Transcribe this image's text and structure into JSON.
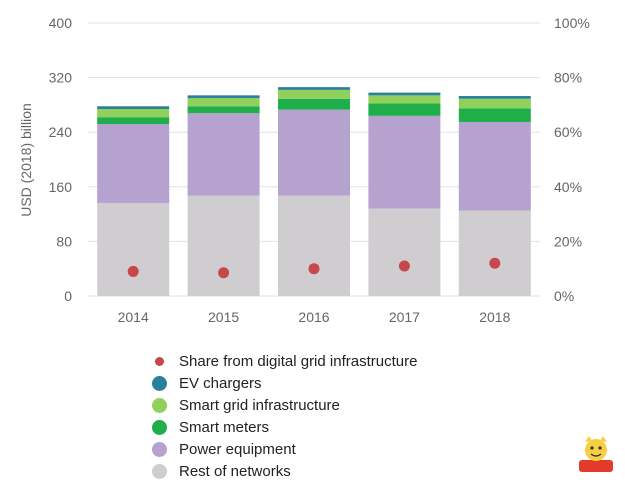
{
  "chart_data": {
    "type": "bar",
    "stacked": true,
    "categories": [
      "2014",
      "2015",
      "2016",
      "2017",
      "2018"
    ],
    "series": [
      {
        "name": "Rest of networks",
        "color": "#cfcdd0",
        "values": [
          136,
          147,
          147,
          128,
          125
        ]
      },
      {
        "name": "Power equipment",
        "color": "#b6a2cf",
        "values": [
          116,
          121,
          126,
          136,
          130
        ]
      },
      {
        "name": "Smart meters",
        "color": "#1fae4a",
        "values": [
          10,
          10,
          16,
          18,
          20
        ]
      },
      {
        "name": "Smart grid infrastructure",
        "color": "#8fd15a",
        "values": [
          12,
          12,
          13,
          12,
          14
        ]
      },
      {
        "name": "EV chargers",
        "color": "#2a7f9b",
        "values": [
          4,
          4,
          4,
          4,
          4
        ]
      }
    ],
    "line_series": {
      "name": "Share from digital grid infrastructure",
      "color": "#c8474b",
      "axis": "right",
      "values": [
        0.09,
        0.085,
        0.1,
        0.11,
        0.12
      ]
    },
    "ylabel": "USD (2018) billion",
    "ylim": [
      0,
      400
    ],
    "yticks": [
      "0",
      "80",
      "160",
      "240",
      "320",
      "400"
    ],
    "y2ticks": [
      "0%",
      "20%",
      "40%",
      "60%",
      "80%",
      "100%"
    ],
    "y2lim": [
      0,
      1
    ],
    "grid": true,
    "legend_position": "bottom"
  },
  "legend": [
    {
      "label": "Share from digital grid infrastructure",
      "color": "#c8474b",
      "marker": "dot"
    },
    {
      "label": "EV chargers",
      "color": "#2a7f9b",
      "marker": "circle"
    },
    {
      "label": "Smart grid infrastructure",
      "color": "#8fd15a",
      "marker": "circle"
    },
    {
      "label": "Smart meters",
      "color": "#1fae4a",
      "marker": "circle"
    },
    {
      "label": "Power equipment",
      "color": "#b6a2cf",
      "marker": "circle"
    },
    {
      "label": "Rest of networks",
      "color": "#cfcdd0",
      "marker": "circle"
    }
  ]
}
